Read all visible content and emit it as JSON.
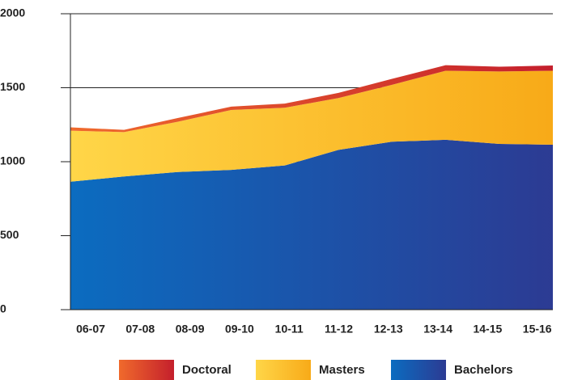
{
  "chart_data": {
    "type": "stacked_area",
    "categories": [
      "06-07",
      "07-08",
      "08-09",
      "09-10",
      "10-11",
      "11-12",
      "12-13",
      "13-14",
      "14-15",
      "15-16"
    ],
    "series": [
      {
        "name": "Doctoral",
        "color": "#f06a2c",
        "values": [
          22,
          15,
          25,
          22,
          28,
          35,
          40,
          37,
          32,
          35
        ]
      },
      {
        "name": "Masters",
        "color": "#ffd648",
        "values": [
          345,
          300,
          340,
          405,
          390,
          350,
          385,
          467,
          490,
          500
        ]
      },
      {
        "name": "Bachelors",
        "color": "#0b6cc0",
        "values": [
          865,
          900,
          930,
          945,
          975,
          1080,
          1135,
          1148,
          1120,
          1115
        ]
      }
    ],
    "ylim": [
      0,
      2000
    ],
    "yticks": [
      0,
      500,
      1000,
      1500,
      2000
    ],
    "grid": true
  }
}
